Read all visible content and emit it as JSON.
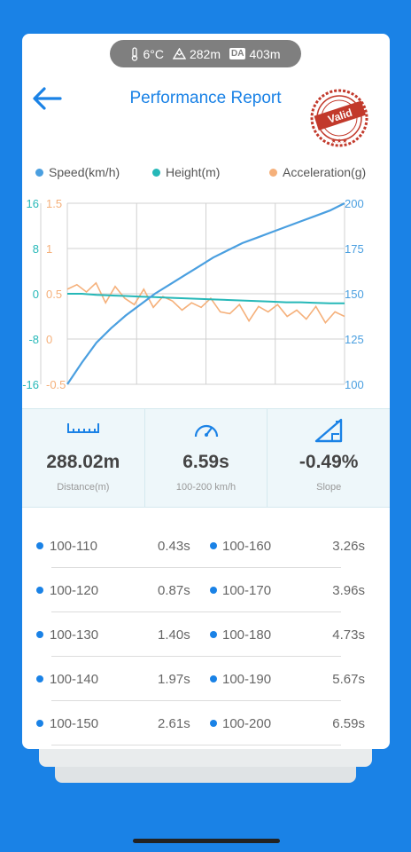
{
  "weather": {
    "temp": "6°C",
    "altitude": "282m",
    "da_label": "DA",
    "density_altitude": "403m"
  },
  "header": {
    "title": "Performance Report",
    "stamp_text": "Valid"
  },
  "legend": [
    {
      "label": "Speed(km/h)",
      "color": "#4a9fe0"
    },
    {
      "label": "Height(m)",
      "color": "#26b8b8"
    },
    {
      "label": "Acceleration(g)",
      "color": "#f5b07a"
    }
  ],
  "chart_data": {
    "type": "line",
    "left_axis_height": {
      "ticks": [
        "16",
        "8",
        "0",
        "-8",
        "-16"
      ],
      "color": "#26b8b8",
      "ylim": [
        -16,
        16
      ]
    },
    "left_axis_accel": {
      "ticks": [
        "1.5",
        "1",
        "0.5",
        "0",
        "-0.5"
      ],
      "color": "#f5b07a",
      "ylim": [
        -0.5,
        1.5
      ]
    },
    "right_axis_speed": {
      "ticks": [
        "200",
        "175",
        "150",
        "125",
        "100"
      ],
      "color": "#4a9fe0",
      "ylim": [
        100,
        200
      ]
    },
    "series": [
      {
        "name": "Speed(km/h)",
        "axis": "right",
        "values": [
          100,
          112,
          123,
          131,
          138,
          144,
          150,
          155,
          160,
          165,
          170,
          174,
          178,
          181,
          184,
          187,
          190,
          193,
          196,
          200
        ]
      },
      {
        "name": "Height(m)",
        "axis": "left_height",
        "values": [
          0,
          0,
          -0.2,
          -0.3,
          -0.4,
          -0.5,
          -0.6,
          -0.7,
          -0.8,
          -0.9,
          -1,
          -1.1,
          -1.2,
          -1.3,
          -1.4,
          -1.5,
          -1.5,
          -1.6,
          -1.7,
          -1.7
        ]
      },
      {
        "name": "Acceleration(g)",
        "axis": "left_accel",
        "values": [
          0.55,
          0.6,
          0.52,
          0.62,
          0.4,
          0.58,
          0.45,
          0.38,
          0.55,
          0.35,
          0.47,
          0.42,
          0.32,
          0.4,
          0.35,
          0.45,
          0.3,
          0.28,
          0.38,
          0.2,
          0.36,
          0.3,
          0.38,
          0.25,
          0.32,
          0.22,
          0.36,
          0.18,
          0.3,
          0.25
        ]
      }
    ],
    "grid": true
  },
  "stats": [
    {
      "value": "288.02m",
      "label": "Distance(m)",
      "icon": "ruler-icon"
    },
    {
      "value": "6.59s",
      "label": "100-200 km/h",
      "icon": "speedometer-icon"
    },
    {
      "value": "-0.49%",
      "label": "Slope",
      "icon": "slope-icon"
    }
  ],
  "splits": [
    {
      "range_a": "100-110",
      "time_a": "0.43s",
      "range_b": "100-160",
      "time_b": "3.26s"
    },
    {
      "range_a": "100-120",
      "time_a": "0.87s",
      "range_b": "100-170",
      "time_b": "3.96s"
    },
    {
      "range_a": "100-130",
      "time_a": "1.40s",
      "range_b": "100-180",
      "time_b": "4.73s"
    },
    {
      "range_a": "100-140",
      "time_a": "1.97s",
      "range_b": "100-190",
      "time_b": "5.67s"
    },
    {
      "range_a": "100-150",
      "time_a": "2.61s",
      "range_b": "100-200",
      "time_b": "6.59s"
    }
  ]
}
